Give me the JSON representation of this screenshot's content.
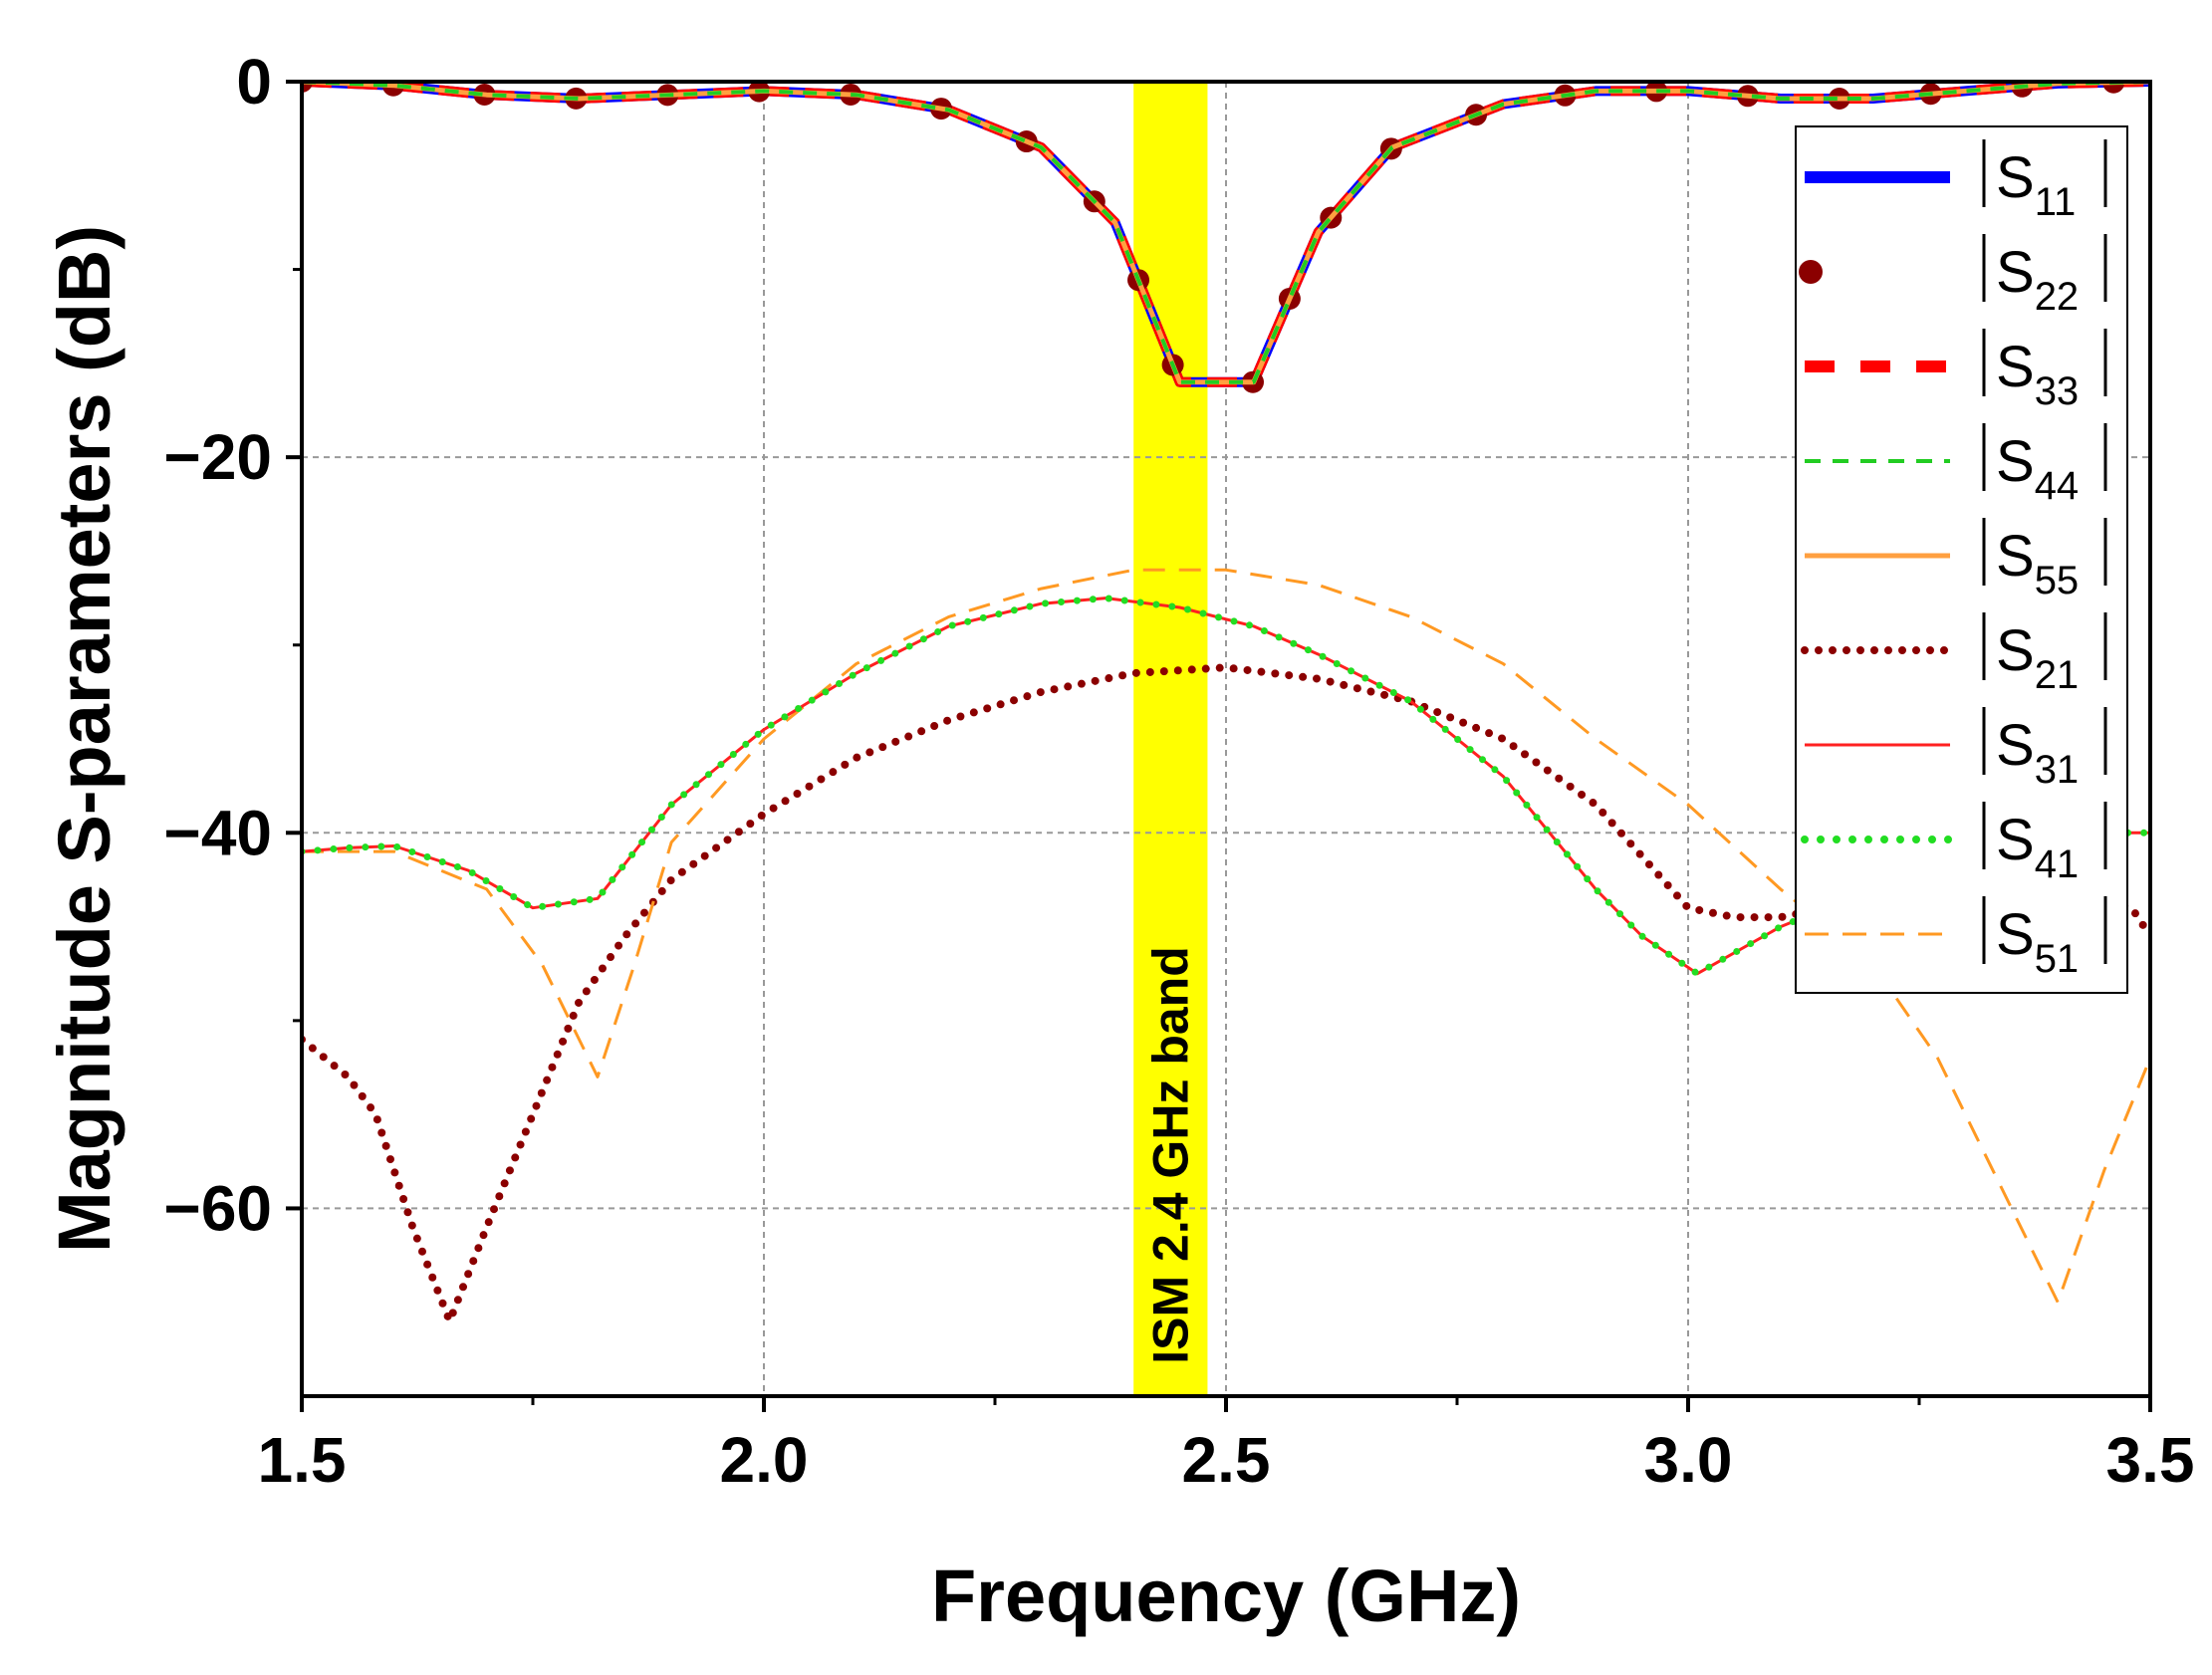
{
  "chart_data": {
    "type": "line",
    "title": "",
    "xlabel": "Frequency (GHz)",
    "ylabel": "Magnitude S-parameters (dB)",
    "xlim": [
      1.5,
      3.5
    ],
    "ylim": [
      -70,
      0
    ],
    "xticks": [
      1.5,
      2.0,
      2.5,
      3.0,
      3.5
    ],
    "xtick_labels": [
      "1.5",
      "2.0",
      "2.5",
      "3.0",
      "3.5"
    ],
    "yticks": [
      0,
      -20,
      -40,
      -60
    ],
    "ytick_labels": [
      "0",
      "−20",
      "−40",
      "−60"
    ],
    "grid": true,
    "legend_position": "top-right",
    "band": {
      "label": "ISM 2.4 GHz band",
      "x_range": [
        2.4,
        2.48
      ],
      "color": "#ffff00"
    },
    "series": [
      {
        "name": "S11",
        "label_main": "S",
        "label_sub": "11",
        "color": "#0000ff",
        "style": "solid-thick",
        "x": [
          1.5,
          1.6,
          1.7,
          1.8,
          1.9,
          2.0,
          2.1,
          2.2,
          2.3,
          2.38,
          2.45,
          2.53,
          2.6,
          2.68,
          2.8,
          2.9,
          3.0,
          3.1,
          3.2,
          3.3,
          3.4,
          3.5
        ],
        "y": [
          0,
          -0.2,
          -0.7,
          -0.9,
          -0.7,
          -0.5,
          -0.7,
          -1.5,
          -3.5,
          -7.5,
          -16,
          -16,
          -8,
          -3.5,
          -1.2,
          -0.5,
          -0.5,
          -0.9,
          -0.9,
          -0.5,
          -0.1,
          0
        ]
      },
      {
        "name": "S22",
        "label_main": "S",
        "label_sub": "22",
        "color": "#8b0000",
        "style": "dotted-thick",
        "x": [
          1.5,
          1.6,
          1.7,
          1.8,
          1.9,
          2.0,
          2.1,
          2.2,
          2.3,
          2.38,
          2.45,
          2.53,
          2.6,
          2.68,
          2.8,
          2.9,
          3.0,
          3.1,
          3.2,
          3.3,
          3.4,
          3.5
        ],
        "y": [
          0,
          -0.2,
          -0.7,
          -0.9,
          -0.7,
          -0.5,
          -0.7,
          -1.5,
          -3.5,
          -7.5,
          -16,
          -16,
          -8,
          -3.5,
          -1.2,
          -0.5,
          -0.5,
          -0.9,
          -0.9,
          -0.5,
          -0.1,
          0
        ]
      },
      {
        "name": "S33",
        "label_main": "S",
        "label_sub": "33",
        "color": "#ff0000",
        "style": "dashed-thick",
        "x": [
          1.5,
          1.6,
          1.7,
          1.8,
          1.9,
          2.0,
          2.1,
          2.2,
          2.3,
          2.38,
          2.45,
          2.53,
          2.6,
          2.68,
          2.8,
          2.9,
          3.0,
          3.1,
          3.2,
          3.3,
          3.4,
          3.5
        ],
        "y": [
          0,
          -0.2,
          -0.7,
          -0.9,
          -0.7,
          -0.5,
          -0.7,
          -1.5,
          -3.5,
          -7.5,
          -16,
          -16,
          -8,
          -3.5,
          -1.2,
          -0.5,
          -0.5,
          -0.9,
          -0.9,
          -0.5,
          -0.1,
          0
        ]
      },
      {
        "name": "S44",
        "label_main": "S",
        "label_sub": "44",
        "color": "#22cc22",
        "style": "dashed-thin",
        "x": [
          1.5,
          1.6,
          1.7,
          1.8,
          1.9,
          2.0,
          2.1,
          2.2,
          2.3,
          2.38,
          2.45,
          2.53,
          2.6,
          2.68,
          2.8,
          2.9,
          3.0,
          3.1,
          3.2,
          3.3,
          3.4,
          3.5
        ],
        "y": [
          0,
          -0.2,
          -0.7,
          -0.9,
          -0.7,
          -0.5,
          -0.7,
          -1.5,
          -3.5,
          -7.5,
          -16,
          -16,
          -8,
          -3.5,
          -1.2,
          -0.5,
          -0.5,
          -0.9,
          -0.9,
          -0.5,
          -0.1,
          0
        ]
      },
      {
        "name": "S55",
        "label_main": "S",
        "label_sub": "55",
        "color": "#ffa040",
        "style": "solid-medium",
        "x": [
          1.5,
          1.6,
          1.7,
          1.8,
          1.9,
          2.0,
          2.1,
          2.2,
          2.3,
          2.38,
          2.45,
          2.53,
          2.6,
          2.68,
          2.8,
          2.9,
          3.0,
          3.1,
          3.2,
          3.3,
          3.4,
          3.5
        ],
        "y": [
          0,
          -0.2,
          -0.7,
          -0.9,
          -0.7,
          -0.5,
          -0.7,
          -1.5,
          -3.5,
          -7.5,
          -16,
          -16,
          -8,
          -3.5,
          -1.2,
          -0.5,
          -0.5,
          -0.9,
          -0.9,
          -0.5,
          -0.1,
          0
        ]
      },
      {
        "name": "S21",
        "label_main": "S",
        "label_sub": "21",
        "color": "#8b0000",
        "style": "dotted-medium",
        "x": [
          1.5,
          1.55,
          1.58,
          1.62,
          1.66,
          1.7,
          1.75,
          1.8,
          1.85,
          1.9,
          2.0,
          2.1,
          2.2,
          2.3,
          2.4,
          2.5,
          2.6,
          2.7,
          2.8,
          2.9,
          3.0,
          3.05,
          3.1,
          3.2,
          3.3,
          3.4,
          3.48,
          3.5
        ],
        "y": [
          -51,
          -53,
          -55,
          -61,
          -66,
          -61,
          -55,
          -49,
          -45.5,
          -42.5,
          -39,
          -36,
          -34,
          -32.5,
          -31.5,
          -31.2,
          -31.8,
          -33,
          -35,
          -38.5,
          -44,
          -44.5,
          -44.5,
          -43.5,
          -42.5,
          -43,
          -44,
          -45.5
        ]
      },
      {
        "name": "S31",
        "label_main": "S",
        "label_sub": "31",
        "color": "#ff2020",
        "style": "solid-thin",
        "x": [
          1.5,
          1.55,
          1.6,
          1.68,
          1.75,
          1.82,
          1.9,
          2.0,
          2.1,
          2.2,
          2.3,
          2.37,
          2.45,
          2.53,
          2.6,
          2.7,
          2.8,
          2.9,
          2.95,
          3.01,
          3.1,
          3.2,
          3.3,
          3.4,
          3.5
        ],
        "y": [
          -41,
          -40.8,
          -40.7,
          -42,
          -44,
          -43.5,
          -38.5,
          -34.5,
          -31.5,
          -29,
          -27.8,
          -27.5,
          -28,
          -29,
          -30.5,
          -33,
          -37,
          -43,
          -45.5,
          -47.5,
          -45,
          -43,
          -41,
          -40,
          -40
        ]
      },
      {
        "name": "S41",
        "label_main": "S",
        "label_sub": "41",
        "color": "#22dd22",
        "style": "dotted-green",
        "x": [
          1.5,
          1.55,
          1.6,
          1.68,
          1.75,
          1.82,
          1.9,
          2.0,
          2.1,
          2.2,
          2.3,
          2.37,
          2.45,
          2.53,
          2.6,
          2.7,
          2.8,
          2.9,
          2.95,
          3.01,
          3.1,
          3.2,
          3.3,
          3.4,
          3.5
        ],
        "y": [
          -41,
          -40.8,
          -40.7,
          -42,
          -44,
          -43.5,
          -38.5,
          -34.5,
          -31.5,
          -29,
          -27.8,
          -27.5,
          -28,
          -29,
          -30.5,
          -33,
          -37,
          -43,
          -45.5,
          -47.5,
          -45,
          -43,
          -41,
          -40,
          -40
        ]
      },
      {
        "name": "S51",
        "label_main": "S",
        "label_sub": "51",
        "color": "#ff9922",
        "style": "dashed-orange",
        "x": [
          1.5,
          1.6,
          1.7,
          1.76,
          1.82,
          1.86,
          1.9,
          2.0,
          2.1,
          2.2,
          2.3,
          2.4,
          2.5,
          2.6,
          2.7,
          2.8,
          2.9,
          3.0,
          3.1,
          3.2,
          3.27,
          3.33,
          3.4,
          3.45,
          3.5
        ],
        "y": [
          -41,
          -41,
          -43,
          -47,
          -53,
          -47,
          -40.5,
          -35,
          -31,
          -28.5,
          -27,
          -26,
          -26,
          -26.8,
          -28.5,
          -31,
          -35,
          -38.5,
          -43,
          -47,
          -52,
          -58,
          -65,
          -58,
          -52
        ]
      }
    ]
  }
}
